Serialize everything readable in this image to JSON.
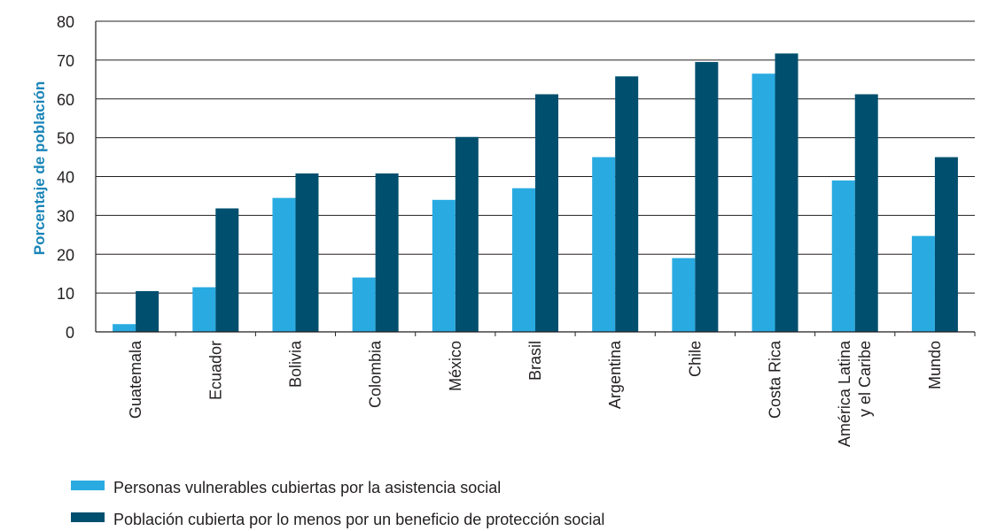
{
  "chart_data": {
    "type": "bar",
    "ylabel": "Porcentaje de población",
    "xlabel": "",
    "ylim": [
      0,
      80
    ],
    "yticks": [
      0,
      10,
      20,
      30,
      40,
      50,
      60,
      70,
      80
    ],
    "grid": true,
    "legend_position": "bottom-left",
    "categories": [
      [
        "Guatemala"
      ],
      [
        "Ecuador"
      ],
      [
        "Bolivia"
      ],
      [
        "Colombia"
      ],
      [
        "México"
      ],
      [
        "Brasil"
      ],
      [
        "Argentina"
      ],
      [
        "Chile"
      ],
      [
        "Costa Rica"
      ],
      [
        "América Latina",
        "y el Caribe"
      ],
      [
        "Mundo"
      ]
    ],
    "series": [
      {
        "name": "Personas vulnerables cubiertas por la asistencia social",
        "color": "#29abe2",
        "values": [
          2,
          11.5,
          34.5,
          14,
          34,
          37,
          45,
          19,
          66.5,
          39,
          24.7
        ]
      },
      {
        "name": "Población cubierta por lo menos por un beneficio de protección social",
        "color": "#004f6e",
        "values": [
          10.5,
          31.8,
          40.8,
          40.8,
          50.2,
          61.2,
          65.8,
          69.5,
          71.7,
          61.2,
          45
        ]
      }
    ],
    "colors": {
      "axis": "#231f20",
      "grid": "#231f20",
      "ylabel": "#1a85b8"
    }
  }
}
